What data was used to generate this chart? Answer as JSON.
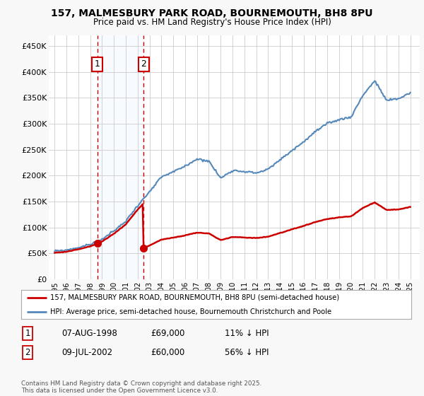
{
  "title": "157, MALMESBURY PARK ROAD, BOURNEMOUTH, BH8 8PU",
  "subtitle": "Price paid vs. HM Land Registry's House Price Index (HPI)",
  "legend_line1": "157, MALMESBURY PARK ROAD, BOURNEMOUTH, BH8 8PU (semi-detached house)",
  "legend_line2": "HPI: Average price, semi-detached house, Bournemouth Christchurch and Poole",
  "footer": "Contains HM Land Registry data © Crown copyright and database right 2025.\nThis data is licensed under the Open Government Licence v3.0.",
  "sale1_date": "07-AUG-1998",
  "sale1_price": "£69,000",
  "sale1_hpi": "11% ↓ HPI",
  "sale1_x": 1998.6,
  "sale1_y": 69000,
  "sale2_date": "09-JUL-2002",
  "sale2_price": "£60,000",
  "sale2_hpi": "56% ↓ HPI",
  "sale2_x": 2002.5,
  "sale2_y": 60000,
  "red_color": "#cc0000",
  "blue_color": "#5588bb",
  "shade_color": "#ddeeff",
  "grid_color": "#cccccc",
  "background_color": "#f8f8f8",
  "chart_bg": "#ffffff",
  "ylim": [
    0,
    470000
  ],
  "xlim": [
    1994.5,
    2025.8
  ],
  "yticks": [
    0,
    50000,
    100000,
    150000,
    200000,
    250000,
    300000,
    350000,
    400000,
    450000
  ],
  "ytick_labels": [
    "£0",
    "£50K",
    "£100K",
    "£150K",
    "£200K",
    "£250K",
    "£300K",
    "£350K",
    "£400K",
    "£450K"
  ],
  "xticks": [
    1995,
    1996,
    1997,
    1998,
    1999,
    2000,
    2001,
    2002,
    2003,
    2004,
    2005,
    2006,
    2007,
    2008,
    2009,
    2010,
    2011,
    2012,
    2013,
    2014,
    2015,
    2016,
    2017,
    2018,
    2019,
    2020,
    2021,
    2022,
    2023,
    2024,
    2025
  ],
  "hpi_years": [
    1995.0,
    1995.08,
    1995.17,
    1995.25,
    1995.33,
    1995.42,
    1995.5,
    1995.58,
    1995.67,
    1995.75,
    1995.83,
    1995.92,
    1996.0,
    1996.08,
    1996.17,
    1996.25,
    1996.33,
    1996.42,
    1996.5,
    1996.58,
    1996.67,
    1996.75,
    1996.83,
    1996.92,
    1997.0,
    1997.08,
    1997.17,
    1997.25,
    1997.33,
    1997.42,
    1997.5,
    1997.58,
    1997.67,
    1997.75,
    1997.83,
    1997.92,
    1998.0,
    1998.08,
    1998.17,
    1998.25,
    1998.33,
    1998.42,
    1998.5,
    1998.58,
    1998.67,
    1998.75,
    1998.83,
    1998.92,
    1999.0,
    1999.08,
    1999.17,
    1999.25,
    1999.33,
    1999.42,
    1999.5,
    1999.58,
    1999.67,
    1999.75,
    1999.83,
    1999.92,
    2000.0,
    2000.08,
    2000.17,
    2000.25,
    2000.33,
    2000.42,
    2000.5,
    2000.58,
    2000.67,
    2000.75,
    2000.83,
    2000.92,
    2001.0,
    2001.08,
    2001.17,
    2001.25,
    2001.33,
    2001.42,
    2001.5,
    2001.58,
    2001.67,
    2001.75,
    2001.83,
    2001.92,
    2002.0,
    2002.08,
    2002.17,
    2002.25,
    2002.33,
    2002.42,
    2002.5,
    2002.58,
    2002.67,
    2002.75,
    2002.83,
    2002.92,
    2003.0,
    2003.08,
    2003.17,
    2003.25,
    2003.33,
    2003.42,
    2003.5,
    2003.58,
    2003.67,
    2003.75,
    2003.83,
    2003.92,
    2004.0,
    2004.08,
    2004.17,
    2004.25,
    2004.33,
    2004.42,
    2004.5,
    2004.58,
    2004.67,
    2004.75,
    2004.83,
    2004.92,
    2005.0,
    2005.08,
    2005.17,
    2005.25,
    2005.33,
    2005.42,
    2005.5,
    2005.58,
    2005.67,
    2005.75,
    2005.83,
    2005.92,
    2006.0,
    2006.08,
    2006.17,
    2006.25,
    2006.33,
    2006.42,
    2006.5,
    2006.58,
    2006.67,
    2006.75,
    2006.83,
    2006.92,
    2007.0,
    2007.08,
    2007.17,
    2007.25,
    2007.33,
    2007.42,
    2007.5,
    2007.58,
    2007.67,
    2007.75,
    2007.83,
    2007.92,
    2008.0,
    2008.08,
    2008.17,
    2008.25,
    2008.33,
    2008.42,
    2008.5,
    2008.58,
    2008.67,
    2008.75,
    2008.83,
    2008.92,
    2009.0,
    2009.08,
    2009.17,
    2009.25,
    2009.33,
    2009.42,
    2009.5,
    2009.58,
    2009.67,
    2009.75,
    2009.83,
    2009.92,
    2010.0,
    2010.08,
    2010.17,
    2010.25,
    2010.33,
    2010.42,
    2010.5,
    2010.58,
    2010.67,
    2010.75,
    2010.83,
    2010.92,
    2011.0,
    2011.08,
    2011.17,
    2011.25,
    2011.33,
    2011.42,
    2011.5,
    2011.58,
    2011.67,
    2011.75,
    2011.83,
    2011.92,
    2012.0,
    2012.08,
    2012.17,
    2012.25,
    2012.33,
    2012.42,
    2012.5,
    2012.58,
    2012.67,
    2012.75,
    2012.83,
    2012.92,
    2013.0,
    2013.08,
    2013.17,
    2013.25,
    2013.33,
    2013.42,
    2013.5,
    2013.58,
    2013.67,
    2013.75,
    2013.83,
    2013.92,
    2014.0,
    2014.08,
    2014.17,
    2014.25,
    2014.33,
    2014.42,
    2014.5,
    2014.58,
    2014.67,
    2014.75,
    2014.83,
    2014.92,
    2015.0,
    2015.08,
    2015.17,
    2015.25,
    2015.33,
    2015.42,
    2015.5,
    2015.58,
    2015.67,
    2015.75,
    2015.83,
    2015.92,
    2016.0,
    2016.08,
    2016.17,
    2016.25,
    2016.33,
    2016.42,
    2016.5,
    2016.58,
    2016.67,
    2016.75,
    2016.83,
    2016.92,
    2017.0,
    2017.08,
    2017.17,
    2017.25,
    2017.33,
    2017.42,
    2017.5,
    2017.58,
    2017.67,
    2017.75,
    2017.83,
    2017.92,
    2018.0,
    2018.08,
    2018.17,
    2018.25,
    2018.33,
    2018.42,
    2018.5,
    2018.58,
    2018.67,
    2018.75,
    2018.83,
    2018.92,
    2019.0,
    2019.08,
    2019.17,
    2019.25,
    2019.33,
    2019.42,
    2019.5,
    2019.58,
    2019.67,
    2019.75,
    2019.83,
    2019.92,
    2020.0,
    2020.08,
    2020.17,
    2020.25,
    2020.33,
    2020.42,
    2020.5,
    2020.58,
    2020.67,
    2020.75,
    2020.83,
    2020.92,
    2021.0,
    2021.08,
    2021.17,
    2021.25,
    2021.33,
    2021.42,
    2021.5,
    2021.58,
    2021.67,
    2021.75,
    2021.83,
    2021.92,
    2022.0,
    2022.08,
    2022.17,
    2022.25,
    2022.33,
    2022.42,
    2022.5,
    2022.58,
    2022.67,
    2022.75,
    2022.83,
    2022.92,
    2023.0,
    2023.08,
    2023.17,
    2023.25,
    2023.33,
    2023.42,
    2023.5,
    2023.58,
    2023.67,
    2023.75,
    2023.83,
    2023.92,
    2024.0,
    2024.08,
    2024.17,
    2024.25,
    2024.33,
    2024.42,
    2024.5,
    2024.58,
    2024.67,
    2024.75,
    2024.83,
    2024.92,
    2025.0
  ]
}
